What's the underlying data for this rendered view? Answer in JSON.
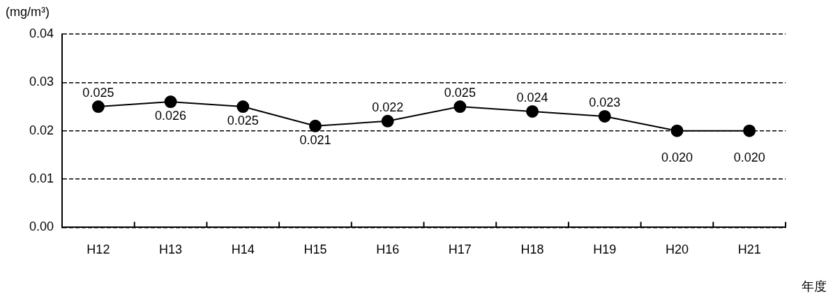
{
  "chart_data": {
    "type": "line",
    "ylabel": "(mg/m³)",
    "xlabel": "年度",
    "categories": [
      "H12",
      "H13",
      "H14",
      "H15",
      "H16",
      "H17",
      "H18",
      "H19",
      "H20",
      "H21"
    ],
    "series": [
      {
        "color": "#000000",
        "values": [
          0.025,
          0.026,
          0.025,
          0.021,
          0.022,
          0.025,
          0.024,
          0.023,
          0.02,
          0.02
        ],
        "value_labels": [
          "0.025",
          "0.026",
          "0.025",
          "0.021",
          "0.022",
          "0.025",
          "0.024",
          "0.023",
          "0.020",
          "0.020"
        ]
      }
    ],
    "ylim": [
      0,
      0.04
    ],
    "yticks": [
      {
        "value": 0,
        "label": "0.00"
      },
      {
        "value": 0.01,
        "label": "0.01"
      },
      {
        "value": 0.02,
        "label": "0.02"
      },
      {
        "value": 0.03,
        "label": "0.03"
      },
      {
        "value": 0.04,
        "label": "0.04"
      }
    ],
    "grid": "y",
    "marker": "circle",
    "line_style": "solid",
    "legend": false
  }
}
